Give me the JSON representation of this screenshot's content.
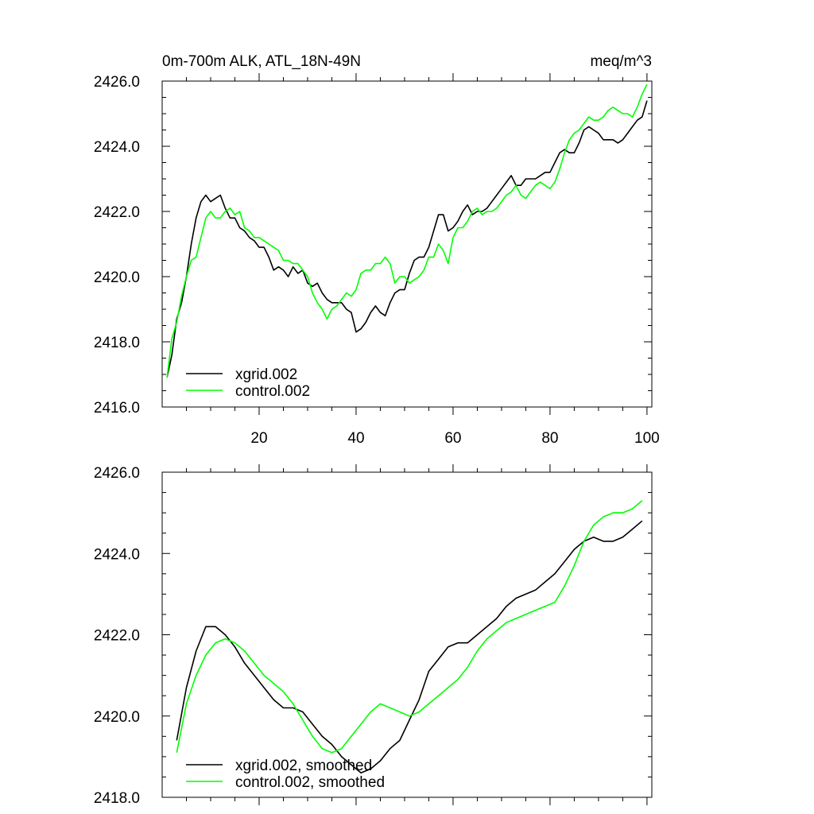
{
  "chart_data": [
    {
      "type": "line",
      "title": "0m-700m ALK, ATL_18N-49N",
      "units": "meq/m^3",
      "xlim": [
        0,
        101
      ],
      "ylim": [
        2416,
        2426
      ],
      "xticks": [
        20,
        40,
        60,
        80,
        100
      ],
      "yticks": [
        2416,
        2418,
        2420,
        2422,
        2424,
        2426
      ],
      "ytick_labels": [
        "2416.0",
        "2418.0",
        "2420.0",
        "2422.0",
        "2424.0",
        "2426.0"
      ],
      "xtick_labels": [
        "20",
        "40",
        "60",
        "80",
        "100"
      ],
      "legend_position": "bottom-left",
      "grid": false,
      "series": [
        {
          "name": "xgrid.002",
          "color": "#000000",
          "x": [
            1,
            2,
            3,
            4,
            5,
            6,
            7,
            8,
            9,
            10,
            11,
            12,
            13,
            14,
            15,
            16,
            17,
            18,
            19,
            20,
            21,
            22,
            23,
            24,
            25,
            26,
            27,
            28,
            29,
            30,
            31,
            32,
            33,
            34,
            35,
            36,
            37,
            38,
            39,
            40,
            41,
            42,
            43,
            44,
            45,
            46,
            47,
            48,
            49,
            50,
            51,
            52,
            53,
            54,
            55,
            56,
            57,
            58,
            59,
            60,
            61,
            62,
            63,
            64,
            65,
            66,
            67,
            68,
            69,
            70,
            71,
            72,
            73,
            74,
            75,
            76,
            77,
            78,
            79,
            80,
            81,
            82,
            83,
            84,
            85,
            86,
            87,
            88,
            89,
            90,
            91,
            92,
            93,
            94,
            95,
            96,
            97,
            98,
            99,
            100
          ],
          "values": [
            2416.9,
            2417.6,
            2418.7,
            2419.2,
            2420.0,
            2421.0,
            2421.8,
            2422.3,
            2422.5,
            2422.3,
            2422.4,
            2422.5,
            2422.1,
            2421.8,
            2421.8,
            2421.5,
            2421.4,
            2421.2,
            2421.1,
            2420.9,
            2420.9,
            2420.6,
            2420.2,
            2420.3,
            2420.2,
            2420.0,
            2420.3,
            2420.1,
            2420.2,
            2419.8,
            2419.7,
            2419.8,
            2419.5,
            2419.3,
            2419.2,
            2419.2,
            2419.2,
            2419.0,
            2418.9,
            2418.3,
            2418.4,
            2418.6,
            2418.9,
            2419.1,
            2418.9,
            2418.8,
            2419.2,
            2419.5,
            2419.6,
            2419.6,
            2420.1,
            2420.5,
            2420.6,
            2420.6,
            2420.9,
            2421.4,
            2421.9,
            2421.9,
            2421.4,
            2421.5,
            2421.7,
            2422.0,
            2422.2,
            2421.9,
            2422.0,
            2422.0,
            2422.1,
            2422.3,
            2422.5,
            2422.7,
            2422.9,
            2423.1,
            2422.8,
            2422.8,
            2423.0,
            2423.0,
            2423.0,
            2423.1,
            2423.2,
            2423.2,
            2423.5,
            2423.8,
            2423.9,
            2423.8,
            2423.8,
            2424.1,
            2424.5,
            2424.6,
            2424.5,
            2424.4,
            2424.2,
            2424.2,
            2424.2,
            2424.1,
            2424.2,
            2424.4,
            2424.6,
            2424.8,
            2424.9,
            2425.4
          ]
        },
        {
          "name": "control.002",
          "color": "#00ff00",
          "x": [
            1,
            2,
            3,
            4,
            5,
            6,
            7,
            8,
            9,
            10,
            11,
            12,
            13,
            14,
            15,
            16,
            17,
            18,
            19,
            20,
            21,
            22,
            23,
            24,
            25,
            26,
            27,
            28,
            29,
            30,
            31,
            32,
            33,
            34,
            35,
            36,
            37,
            38,
            39,
            40,
            41,
            42,
            43,
            44,
            45,
            46,
            47,
            48,
            49,
            50,
            51,
            52,
            53,
            54,
            55,
            56,
            57,
            58,
            59,
            60,
            61,
            62,
            63,
            64,
            65,
            66,
            67,
            68,
            69,
            70,
            71,
            72,
            73,
            74,
            75,
            76,
            77,
            78,
            79,
            80,
            81,
            82,
            83,
            84,
            85,
            86,
            87,
            88,
            89,
            90,
            91,
            92,
            93,
            94,
            95,
            96,
            97,
            98,
            99,
            100
          ],
          "values": [
            2416.9,
            2418.1,
            2418.6,
            2419.4,
            2420.0,
            2420.5,
            2420.6,
            2421.2,
            2421.8,
            2422.0,
            2421.8,
            2421.8,
            2422.0,
            2422.1,
            2421.9,
            2422.0,
            2421.5,
            2421.4,
            2421.2,
            2421.2,
            2421.1,
            2421.0,
            2420.9,
            2420.8,
            2420.5,
            2420.5,
            2420.4,
            2420.4,
            2420.2,
            2420.0,
            2419.5,
            2419.2,
            2419.0,
            2418.7,
            2419.0,
            2419.1,
            2419.3,
            2419.5,
            2419.4,
            2419.6,
            2420.1,
            2420.2,
            2420.2,
            2420.4,
            2420.4,
            2420.6,
            2420.4,
            2419.8,
            2420.0,
            2420.0,
            2419.8,
            2419.9,
            2420.0,
            2420.2,
            2420.6,
            2420.6,
            2421.0,
            2420.8,
            2420.4,
            2421.2,
            2421.5,
            2421.5,
            2421.7,
            2422.0,
            2422.1,
            2421.9,
            2422.0,
            2422.0,
            2422.1,
            2422.3,
            2422.5,
            2422.6,
            2422.8,
            2422.5,
            2422.4,
            2422.6,
            2422.8,
            2422.9,
            2422.8,
            2422.7,
            2422.9,
            2423.3,
            2423.8,
            2424.2,
            2424.4,
            2424.5,
            2424.7,
            2424.9,
            2424.8,
            2424.8,
            2424.9,
            2425.1,
            2425.2,
            2425.1,
            2425.0,
            2425.0,
            2424.9,
            2425.2,
            2425.6,
            2425.9
          ]
        }
      ]
    },
    {
      "type": "line",
      "xlim": [
        0,
        101
      ],
      "ylim": [
        2418,
        2426
      ],
      "xticks": [
        20,
        40,
        60,
        80,
        100
      ],
      "yticks": [
        2418,
        2420,
        2422,
        2424,
        2426
      ],
      "ytick_labels": [
        "2418.0",
        "2420.0",
        "2422.0",
        "2424.0",
        "2426.0"
      ],
      "legend_position": "bottom-left",
      "grid": false,
      "series": [
        {
          "name": "xgrid.002, smoothed",
          "color": "#000000",
          "x": [
            3,
            5,
            7,
            9,
            11,
            13,
            15,
            17,
            19,
            21,
            23,
            25,
            27,
            29,
            31,
            33,
            35,
            37,
            39,
            41,
            43,
            45,
            47,
            49,
            51,
            53,
            55,
            57,
            59,
            61,
            63,
            65,
            67,
            69,
            71,
            73,
            75,
            77,
            79,
            81,
            83,
            85,
            87,
            89,
            91,
            93,
            95,
            97,
            99
          ],
          "values": [
            2419.4,
            2420.7,
            2421.6,
            2422.2,
            2422.2,
            2422.0,
            2421.7,
            2421.3,
            2421.0,
            2420.7,
            2420.4,
            2420.2,
            2420.2,
            2420.1,
            2419.8,
            2419.5,
            2419.3,
            2419.0,
            2418.8,
            2418.6,
            2418.7,
            2418.9,
            2419.2,
            2419.4,
            2419.9,
            2420.4,
            2421.1,
            2421.4,
            2421.7,
            2421.8,
            2421.8,
            2422.0,
            2422.2,
            2422.4,
            2422.7,
            2422.9,
            2423.0,
            2423.1,
            2423.3,
            2423.5,
            2423.8,
            2424.1,
            2424.3,
            2424.4,
            2424.3,
            2424.3,
            2424.4,
            2424.6,
            2424.8
          ]
        },
        {
          "name": "control.002, smoothed",
          "color": "#00ff00",
          "x": [
            3,
            5,
            7,
            9,
            11,
            13,
            15,
            17,
            19,
            21,
            23,
            25,
            27,
            29,
            31,
            33,
            35,
            37,
            39,
            41,
            43,
            45,
            47,
            49,
            51,
            53,
            55,
            57,
            59,
            61,
            63,
            65,
            67,
            69,
            71,
            73,
            75,
            77,
            79,
            81,
            83,
            85,
            87,
            89,
            91,
            93,
            95,
            97,
            99
          ],
          "values": [
            2419.1,
            2420.3,
            2421.0,
            2421.5,
            2421.8,
            2421.9,
            2421.8,
            2421.6,
            2421.3,
            2421.0,
            2420.8,
            2420.6,
            2420.3,
            2419.9,
            2419.5,
            2419.2,
            2419.1,
            2419.2,
            2419.5,
            2419.8,
            2420.1,
            2420.3,
            2420.2,
            2420.1,
            2420.0,
            2420.1,
            2420.3,
            2420.5,
            2420.7,
            2420.9,
            2421.2,
            2421.6,
            2421.9,
            2422.1,
            2422.3,
            2422.4,
            2422.5,
            2422.6,
            2422.7,
            2422.8,
            2423.2,
            2423.7,
            2424.3,
            2424.7,
            2424.9,
            2425.0,
            2425.0,
            2425.1,
            2425.3
          ]
        }
      ]
    }
  ]
}
